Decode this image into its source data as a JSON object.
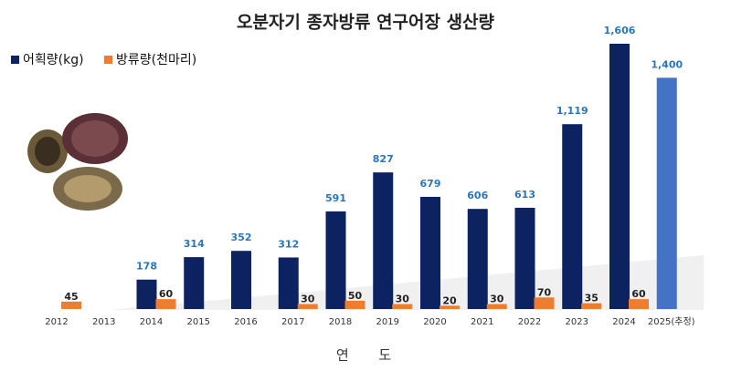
{
  "chart_data": {
    "type": "bar",
    "title": "오분자기 종자방류 연구어장 생산량",
    "x_label": "연 도",
    "categories": [
      "2012",
      "2013",
      "2014",
      "2015",
      "2016",
      "2017",
      "2018",
      "2019",
      "2020",
      "2021",
      "2022",
      "2023",
      "2024",
      "2025(추정)"
    ],
    "series": [
      {
        "name": "어획량(kg)",
        "color": "#0d2260",
        "label_color": "#2e75b6",
        "colors": [
          "#0d2260",
          "#0d2260",
          "#0d2260",
          "#0d2260",
          "#0d2260",
          "#0d2260",
          "#0d2260",
          "#0d2260",
          "#0d2260",
          "#0d2260",
          "#0d2260",
          "#0d2260",
          "#0d2260",
          "#4472c4"
        ],
        "values": [
          null,
          null,
          178,
          314,
          352,
          312,
          591,
          827,
          679,
          606,
          613,
          1119,
          1606,
          1400
        ],
        "value_labels": [
          null,
          null,
          "178",
          "314",
          "352",
          "312",
          "591",
          "827",
          "679",
          "606",
          "613",
          "1,119",
          "1,606",
          "1,400"
        ]
      },
      {
        "name": "방류량(천마리)",
        "color": "#ed7d31",
        "label_color": "#222222",
        "values": [
          45,
          null,
          60,
          null,
          null,
          30,
          50,
          30,
          20,
          30,
          70,
          35,
          60,
          null
        ]
      }
    ],
    "ylim": [
      0,
      1650
    ]
  }
}
